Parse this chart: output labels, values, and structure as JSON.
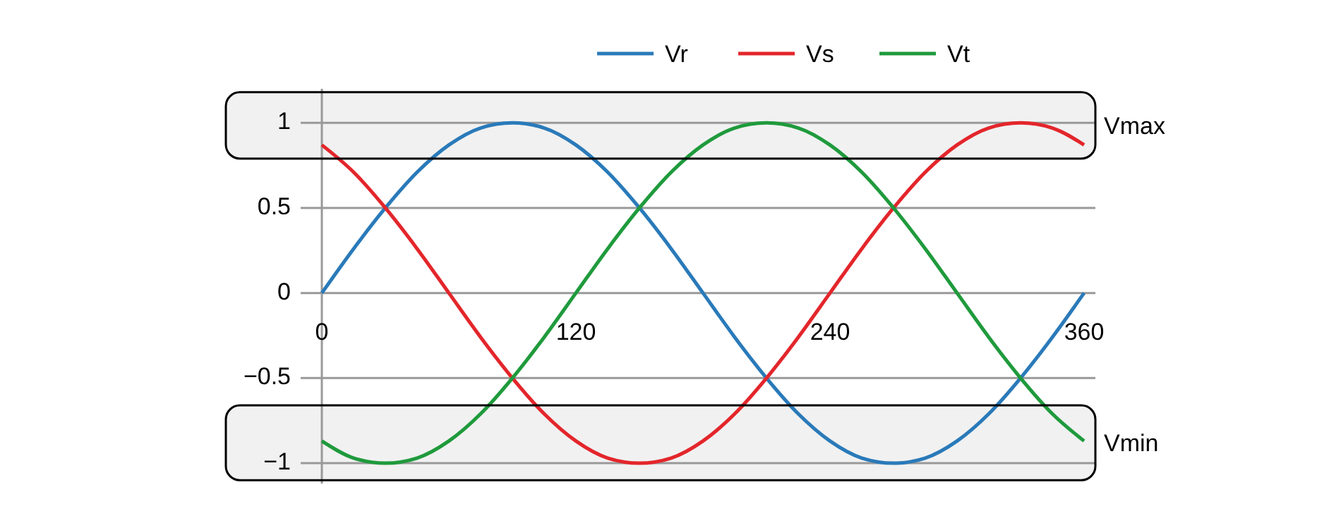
{
  "chart_data": {
    "type": "line",
    "x": [
      0,
      15,
      30,
      45,
      60,
      75,
      90,
      105,
      120,
      135,
      150,
      165,
      180,
      195,
      210,
      225,
      240,
      255,
      270,
      285,
      300,
      315,
      330,
      345,
      360
    ],
    "series": [
      {
        "name": "Vr",
        "color": "#2a7ab9",
        "values": [
          0,
          0.26,
          0.5,
          0.71,
          0.87,
          0.97,
          1,
          0.97,
          0.87,
          0.71,
          0.5,
          0.26,
          0,
          -0.26,
          -0.5,
          -0.71,
          -0.87,
          -0.97,
          -1,
          -0.97,
          -0.87,
          -0.71,
          -0.5,
          -0.26,
          0
        ]
      },
      {
        "name": "Vs",
        "color": "#e3262b",
        "values": [
          0.87,
          0.71,
          0.5,
          0.26,
          0,
          -0.26,
          -0.5,
          -0.71,
          -0.87,
          -0.97,
          -1,
          -0.97,
          -0.87,
          -0.71,
          -0.5,
          -0.26,
          0,
          0.26,
          0.5,
          0.71,
          0.87,
          0.97,
          1,
          0.97,
          0.87
        ]
      },
      {
        "name": "Vt",
        "color": "#1f9a3c",
        "values": [
          -0.87,
          -0.97,
          -1,
          -0.97,
          -0.87,
          -0.71,
          -0.5,
          -0.26,
          0,
          0.26,
          0.5,
          0.71,
          0.87,
          0.97,
          1,
          0.97,
          0.87,
          0.71,
          0.5,
          0.26,
          0,
          -0.26,
          -0.5,
          -0.71,
          -0.87
        ]
      }
    ],
    "xlim": [
      0,
      360
    ],
    "xticks": [
      0,
      120,
      240,
      360
    ],
    "ylim": [
      -1.12,
      1.2
    ],
    "yticks": [
      1,
      0.5,
      0,
      {
        "value": -0.5,
        "label": "−0.5"
      },
      {
        "value": -1,
        "label": "−1"
      }
    ],
    "bands": [
      {
        "axis": "y",
        "from": 0.79,
        "to": 1.18,
        "label": "Vmax"
      },
      {
        "axis": "y",
        "from": -1.1,
        "to": -0.66,
        "label": "Vmin"
      }
    ],
    "grid": "y",
    "legend": "top",
    "marker": "none",
    "line_style": "solid"
  }
}
